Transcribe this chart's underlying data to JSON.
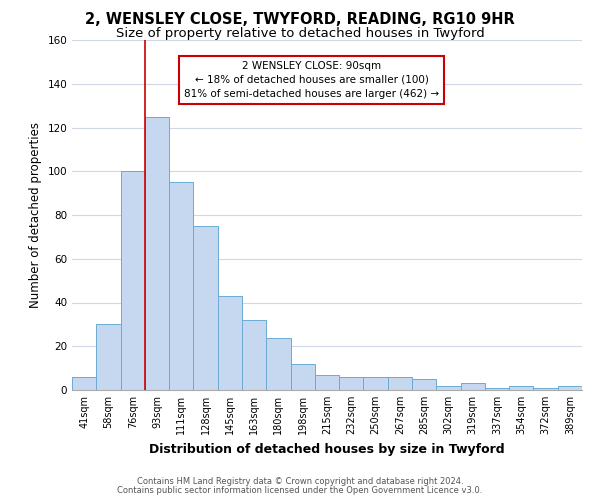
{
  "title": "2, WENSLEY CLOSE, TWYFORD, READING, RG10 9HR",
  "subtitle": "Size of property relative to detached houses in Twyford",
  "xlabel": "Distribution of detached houses by size in Twyford",
  "ylabel": "Number of detached properties",
  "categories": [
    "41sqm",
    "58sqm",
    "76sqm",
    "93sqm",
    "111sqm",
    "128sqm",
    "145sqm",
    "163sqm",
    "180sqm",
    "198sqm",
    "215sqm",
    "232sqm",
    "250sqm",
    "267sqm",
    "285sqm",
    "302sqm",
    "319sqm",
    "337sqm",
    "354sqm",
    "372sqm",
    "389sqm"
  ],
  "values": [
    6,
    30,
    100,
    125,
    95,
    75,
    43,
    32,
    24,
    12,
    7,
    6,
    6,
    6,
    5,
    2,
    3,
    1,
    2,
    1,
    2
  ],
  "bar_color": "#c5d8f0",
  "bar_edge_color": "#6aaad4",
  "vline_color": "#cc0000",
  "annotation_line1": "2 WENSLEY CLOSE: 90sqm",
  "annotation_line2": "← 18% of detached houses are smaller (100)",
  "annotation_line3": "81% of semi-detached houses are larger (462) →",
  "annotation_box_color": "#ffffff",
  "annotation_box_edge": "#cc0000",
  "ylim": [
    0,
    160
  ],
  "yticks": [
    0,
    20,
    40,
    60,
    80,
    100,
    120,
    140,
    160
  ],
  "footer1": "Contains HM Land Registry data © Crown copyright and database right 2024.",
  "footer2": "Contains public sector information licensed under the Open Government Licence v3.0.",
  "background_color": "#ffffff",
  "plot_bg_color": "#ffffff",
  "grid_color": "#d0d8e8",
  "title_fontsize": 10.5,
  "subtitle_fontsize": 9.5,
  "tick_fontsize": 7,
  "ylabel_fontsize": 8.5,
  "xlabel_fontsize": 9,
  "vline_bar_index": 3
}
